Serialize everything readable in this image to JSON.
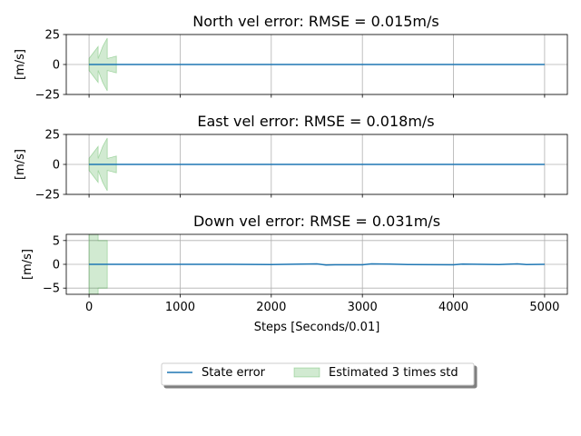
{
  "chart_data": [
    {
      "type": "line",
      "title": "North vel error: RMSE = 0.015m/s",
      "ylabel": "[m/s]",
      "xlim": [
        -250,
        5250
      ],
      "ylim": [
        -25,
        25
      ],
      "yticks": [
        -25,
        0,
        25
      ],
      "xticks": [
        0,
        1000,
        2000,
        3000,
        4000,
        5000
      ],
      "grid": true,
      "series": [
        {
          "name": "State error",
          "color": "#1f77b4",
          "x": [
            0,
            500,
            1000,
            1500,
            2000,
            2500,
            3000,
            3500,
            4000,
            4500,
            5000
          ],
          "y": [
            0,
            0,
            0,
            0,
            0,
            0,
            0,
            0,
            0,
            0,
            0
          ]
        }
      ],
      "band": {
        "name": "Estimated 3 times std",
        "color": "#2ca02c",
        "x": [
          0,
          50,
          100,
          100,
          150,
          200,
          200,
          250,
          300
        ],
        "upper": [
          5,
          10,
          15,
          5,
          15,
          22,
          5,
          6,
          7
        ]
      }
    },
    {
      "type": "line",
      "title": "East vel error: RMSE = 0.018m/s",
      "ylabel": "[m/s]",
      "xlim": [
        -250,
        5250
      ],
      "ylim": [
        -25,
        25
      ],
      "yticks": [
        -25,
        0,
        25
      ],
      "xticks": [
        0,
        1000,
        2000,
        3000,
        4000,
        5000
      ],
      "grid": true,
      "series": [
        {
          "name": "State error",
          "color": "#1f77b4",
          "x": [
            0,
            500,
            1000,
            1500,
            2000,
            2500,
            3000,
            3500,
            4000,
            4500,
            5000
          ],
          "y": [
            0,
            0,
            0,
            0,
            0,
            0,
            0,
            0,
            0,
            0,
            0
          ]
        }
      ],
      "band": {
        "name": "Estimated 3 times std",
        "color": "#2ca02c",
        "x": [
          0,
          50,
          100,
          100,
          150,
          200,
          200,
          250,
          300
        ],
        "upper": [
          5,
          10,
          15,
          5,
          15,
          22,
          5,
          6,
          7
        ]
      }
    },
    {
      "type": "line",
      "title": "Down vel error: RMSE = 0.031m/s",
      "ylabel": "[m/s]",
      "xlabel": "Steps [Seconds/0.01]",
      "xlim": [
        -250,
        5250
      ],
      "ylim": [
        -6.3,
        6.3
      ],
      "yticks": [
        -5,
        0,
        5
      ],
      "xticks": [
        0,
        1000,
        2000,
        3000,
        4000,
        5000
      ],
      "grid": true,
      "series": [
        {
          "name": "State error",
          "color": "#1f77b4",
          "x": [
            0,
            500,
            1000,
            1500,
            2000,
            2500,
            2600,
            2700,
            3000,
            3100,
            3300,
            3500,
            4000,
            4100,
            4500,
            4700,
            4800,
            5000
          ],
          "y": [
            0,
            0,
            0,
            0,
            -0.05,
            0.1,
            -0.15,
            -0.1,
            -0.1,
            0.1,
            0.05,
            -0.05,
            -0.1,
            0.05,
            -0.05,
            0.1,
            -0.05,
            0
          ]
        }
      ],
      "band": {
        "name": "Estimated 3 times std",
        "color": "#2ca02c",
        "x": [
          0,
          100,
          100,
          200
        ],
        "upper": [
          6.3,
          6.3,
          5,
          5
        ]
      }
    }
  ],
  "legend": {
    "placement": "bottom-center",
    "entries": [
      {
        "label": "State error",
        "kind": "line",
        "color": "#1f77b4"
      },
      {
        "label": "Estimated 3 times std",
        "kind": "patch",
        "color": "#2ca02c"
      }
    ]
  }
}
